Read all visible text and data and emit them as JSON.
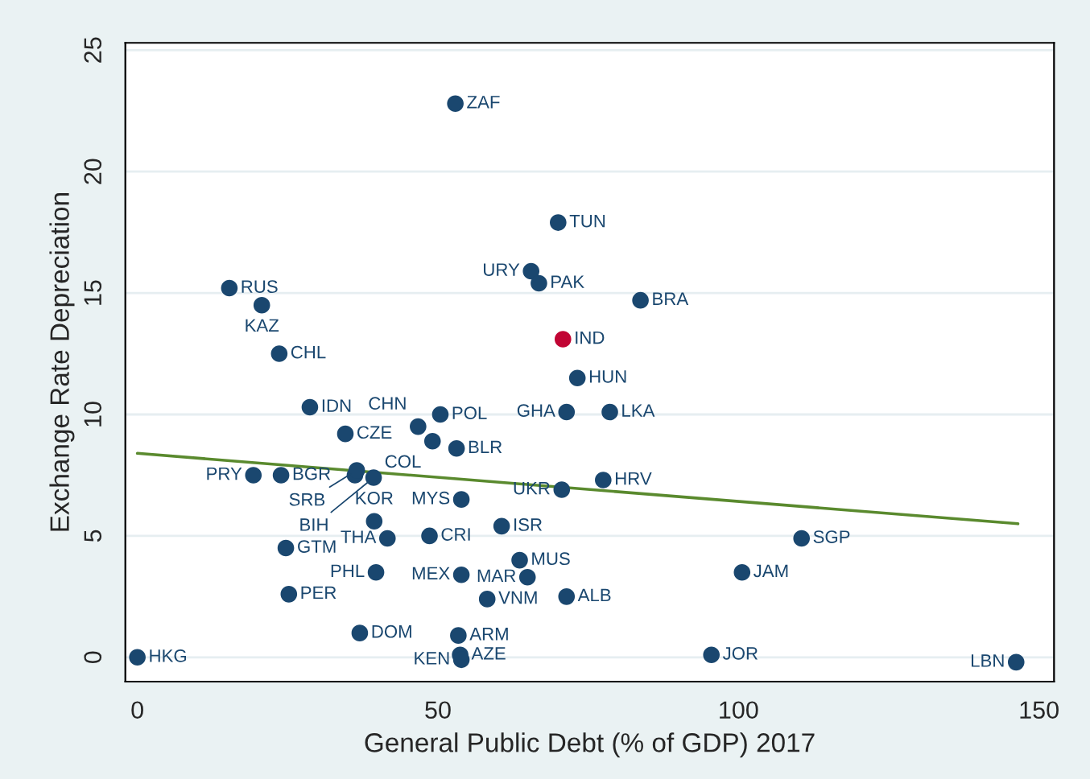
{
  "chart_data": {
    "type": "scatter",
    "xlabel": "General Public Debt (% of GDP) 2017",
    "ylabel": "Exchange Rate Depreciation",
    "xlim": [
      -2,
      152.5
    ],
    "ylim": [
      -1,
      25.3
    ],
    "xticks": [
      0,
      50,
      100,
      150
    ],
    "yticks": [
      0,
      5,
      10,
      15,
      20,
      25
    ],
    "grid": "y",
    "series": [
      {
        "marker": "circle",
        "x": [
          52.9,
          70.0,
          65.5,
          66.8,
          83.7,
          70.8,
          73.2,
          71.4,
          78.6,
          77.5,
          70.6,
          110.5,
          100.6,
          95.5,
          146.2,
          63.6,
          64.9,
          71.4,
          60.6,
          58.2,
          53.9,
          53.4,
          53.7,
          53.9,
          53.9,
          48.6,
          41.6,
          39.4,
          39.7,
          37.0,
          25.2,
          24.7,
          0,
          15.3,
          20.7,
          23.6,
          28.7,
          34.6,
          46.7,
          50.4,
          49.1,
          53.1,
          19.3,
          23.9,
          36.2,
          36.5,
          39.3
        ],
        "values": [
          22.8,
          17.9,
          15.9,
          15.4,
          14.7,
          13.1,
          11.5,
          10.1,
          10.1,
          7.3,
          6.9,
          4.9,
          3.5,
          0.1,
          -0.2,
          4.0,
          3.3,
          2.5,
          5.4,
          2.4,
          3.4,
          0.9,
          0.1,
          -0.1,
          6.5,
          5.0,
          4.9,
          5.6,
          3.5,
          1.0,
          2.6,
          4.5,
          0,
          15.2,
          14.5,
          12.5,
          10.3,
          9.2,
          9.5,
          10.0,
          8.9,
          8.6,
          7.5,
          7.5,
          7.5,
          7.7,
          7.4
        ],
        "colors": [
          "#1a476f",
          "#1a476f",
          "#1a476f",
          "#1a476f",
          "#1a476f",
          "#c10534",
          "#1a476f",
          "#1a476f",
          "#1a476f",
          "#1a476f",
          "#1a476f",
          "#1a476f",
          "#1a476f",
          "#1a476f",
          "#1a476f",
          "#1a476f",
          "#1a476f",
          "#1a476f",
          "#1a476f",
          "#1a476f",
          "#1a476f",
          "#1a476f",
          "#1a476f",
          "#1a476f",
          "#1a476f",
          "#1a476f",
          "#1a476f",
          "#1a476f",
          "#1a476f",
          "#1a476f",
          "#1a476f",
          "#1a476f",
          "#1a476f",
          "#1a476f",
          "#1a476f",
          "#1a476f",
          "#1a476f",
          "#1a476f",
          "#1a476f",
          "#1a476f",
          "#1a476f",
          "#1a476f",
          "#1a476f",
          "#1a476f",
          "#1a476f",
          "#1a476f",
          "#1a476f"
        ]
      },
      {
        "type": "line",
        "color": "#5a8a2e",
        "x": [
          0,
          146.5
        ],
        "values": [
          8.4,
          5.5
        ]
      }
    ],
    "annotations": [
      {
        "text": "ZAF",
        "x": 52.9,
        "y": 22.8
      },
      {
        "text": "TUN",
        "x": 70.0,
        "y": 17.9
      },
      {
        "text": "URY",
        "x": 65.5,
        "y": 15.9
      },
      {
        "text": "PAK",
        "x": 66.8,
        "y": 15.4
      },
      {
        "text": "BRA",
        "x": 83.7,
        "y": 14.7
      },
      {
        "text": "IND",
        "x": 70.8,
        "y": 13.1
      },
      {
        "text": "HUN",
        "x": 73.2,
        "y": 11.5
      },
      {
        "text": "GHA",
        "x": 71.4,
        "y": 10.1
      },
      {
        "text": "LKA",
        "x": 78.6,
        "y": 10.1
      },
      {
        "text": "HRV",
        "x": 77.5,
        "y": 7.3
      },
      {
        "text": "UKR",
        "x": 70.6,
        "y": 6.9
      },
      {
        "text": "SGP",
        "x": 110.5,
        "y": 4.9
      },
      {
        "text": "JAM",
        "x": 100.6,
        "y": 3.5
      },
      {
        "text": "JOR",
        "x": 95.5,
        "y": 0.1
      },
      {
        "text": "LBN",
        "x": 146.2,
        "y": -0.2
      },
      {
        "text": "MUS",
        "x": 63.6,
        "y": 4.0
      },
      {
        "text": "MAR",
        "x": 64.9,
        "y": 3.3
      },
      {
        "text": "ALB",
        "x": 71.4,
        "y": 2.5
      },
      {
        "text": "ISR",
        "x": 60.6,
        "y": 5.4
      },
      {
        "text": "VNM",
        "x": 58.2,
        "y": 2.4
      },
      {
        "text": "MEX",
        "x": 53.9,
        "y": 3.4
      },
      {
        "text": "ARM",
        "x": 53.4,
        "y": 0.9
      },
      {
        "text": "AZE",
        "x": 53.7,
        "y": 0.1
      },
      {
        "text": "KEN",
        "x": 53.9,
        "y": -0.1
      },
      {
        "text": "MYS",
        "x": 53.9,
        "y": 6.5
      },
      {
        "text": "CRI",
        "x": 48.6,
        "y": 5.0
      },
      {
        "text": "THA",
        "x": 41.6,
        "y": 4.9
      },
      {
        "text": "KOR",
        "x": 39.4,
        "y": 5.6
      },
      {
        "text": "PHL",
        "x": 39.7,
        "y": 3.5
      },
      {
        "text": "DOM",
        "x": 37.0,
        "y": 1.0
      },
      {
        "text": "PER",
        "x": 25.2,
        "y": 2.6
      },
      {
        "text": "GTM",
        "x": 24.7,
        "y": 4.5
      },
      {
        "text": "HKG",
        "x": 0,
        "y": 0
      },
      {
        "text": "RUS",
        "x": 15.3,
        "y": 15.2
      },
      {
        "text": "KAZ",
        "x": 20.7,
        "y": 14.5
      },
      {
        "text": "CHL",
        "x": 23.6,
        "y": 12.5
      },
      {
        "text": "IDN",
        "x": 28.7,
        "y": 10.3
      },
      {
        "text": "CZE",
        "x": 34.6,
        "y": 9.2
      },
      {
        "text": "CHN",
        "x": 46.7,
        "y": 9.5
      },
      {
        "text": "POL",
        "x": 50.4,
        "y": 10.0
      },
      {
        "text": "COL",
        "x": 49.1,
        "y": 8.9
      },
      {
        "text": "BLR",
        "x": 53.1,
        "y": 8.6
      },
      {
        "text": "PRY",
        "x": 19.3,
        "y": 7.5
      },
      {
        "text": "BGR",
        "x": 23.9,
        "y": 7.5
      },
      {
        "text": "SRB",
        "x": 36.5,
        "y": 7.7
      },
      {
        "text": "BIH",
        "x": 39.3,
        "y": 7.4
      }
    ]
  }
}
